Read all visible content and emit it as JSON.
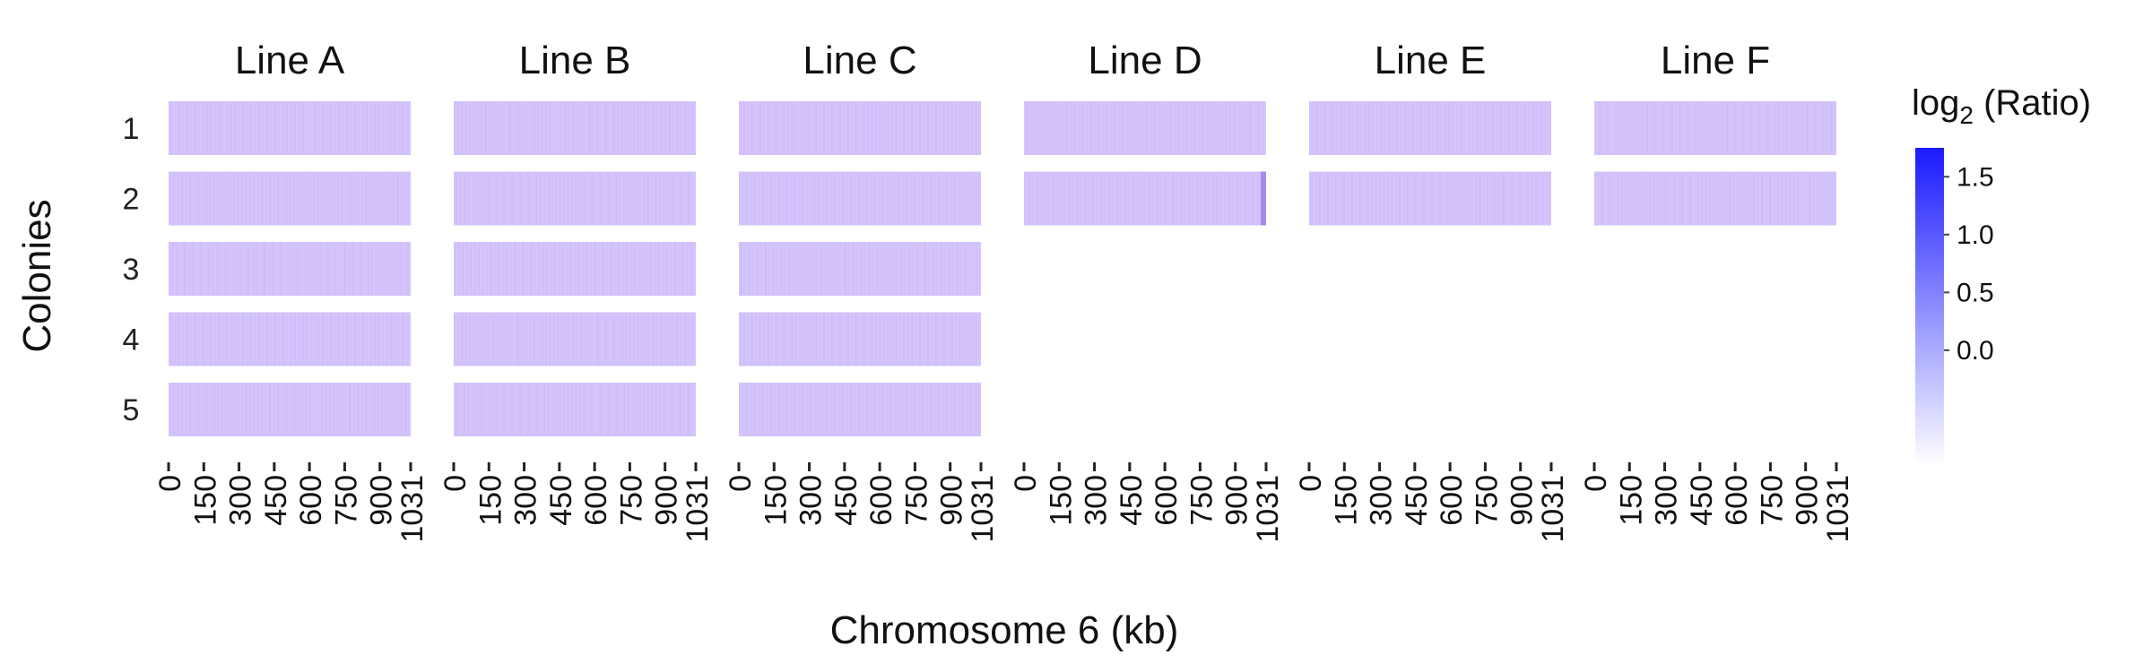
{
  "chart_data": {
    "type": "heatmap",
    "xlabel": "Chromosome 6 (kb)",
    "ylabel": "Colonies",
    "x_range": [
      0,
      1031
    ],
    "x_ticks": [
      "0",
      "150",
      "300",
      "450",
      "600",
      "750",
      "900",
      "1031"
    ],
    "rows": [
      "1",
      "2",
      "3",
      "4",
      "5"
    ],
    "panels": [
      {
        "name": "Line A",
        "colonies": [
          1,
          2,
          3,
          4,
          5
        ],
        "mean_log2_ratio": [
          0,
          0,
          0,
          0,
          0
        ]
      },
      {
        "name": "Line B",
        "colonies": [
          1,
          2,
          3,
          4,
          5
        ],
        "mean_log2_ratio": [
          0,
          0,
          0,
          0,
          0
        ]
      },
      {
        "name": "Line C",
        "colonies": [
          1,
          2,
          3,
          4,
          5
        ],
        "mean_log2_ratio": [
          0,
          0,
          0,
          0,
          0
        ]
      },
      {
        "name": "Line D",
        "colonies": [
          1,
          2
        ],
        "mean_log2_ratio": [
          0,
          0
        ],
        "note_high_value_at_end_colony": 2
      },
      {
        "name": "Line E",
        "colonies": [
          1,
          2
        ],
        "mean_log2_ratio": [
          0,
          0
        ]
      },
      {
        "name": "Line F",
        "colonies": [
          1,
          2
        ],
        "mean_log2_ratio": [
          0,
          0
        ]
      }
    ],
    "legend": {
      "title_prefix": "log",
      "title_sub": "2",
      "title_suffix": " (Ratio)",
      "ticks": [
        1.5,
        1.0,
        0.5,
        0.0
      ],
      "tick_labels": [
        "1.5",
        "1.0",
        "0.5",
        "0.0"
      ],
      "range": [
        -1.0,
        1.75
      ],
      "color_low": "#ffffff",
      "color_high": "#1a1aff",
      "placement": "right"
    },
    "cell_base_color": "#d4c4fb",
    "cell_stripe_color": "#c7b3f7"
  }
}
